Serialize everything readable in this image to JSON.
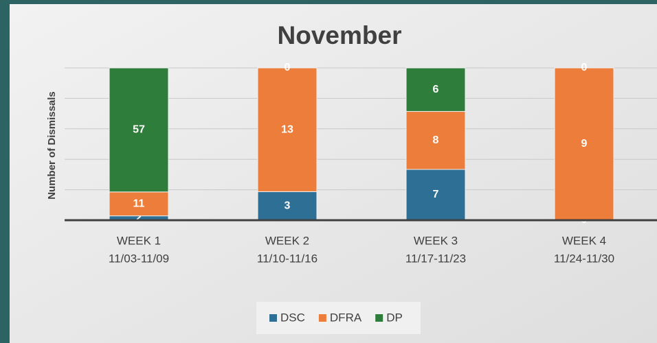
{
  "chart_data": {
    "type": "bar",
    "stack": "percent",
    "title": "November",
    "ylabel": "Number of Dismissals",
    "categories": [
      [
        "WEEK 1",
        "11/03-11/09"
      ],
      [
        "WEEK 2",
        "11/10-11/16"
      ],
      [
        "WEEK 3",
        "11/17-11/23"
      ],
      [
        "WEEK 4",
        "11/24-11/30"
      ]
    ],
    "series": [
      {
        "name": "DSC",
        "color": "#2e7095",
        "values": [
          2,
          3,
          7,
          0
        ]
      },
      {
        "name": "DFRA",
        "color": "#ed7d3a",
        "values": [
          11,
          13,
          8,
          9
        ]
      },
      {
        "name": "DP",
        "color": "#2f7d3b",
        "values": [
          57,
          0,
          6,
          0
        ]
      }
    ],
    "ylim": [
      0,
      100
    ],
    "yticks": [
      0,
      20,
      40,
      60,
      80,
      100
    ],
    "grid": true,
    "legend": "bottom"
  }
}
